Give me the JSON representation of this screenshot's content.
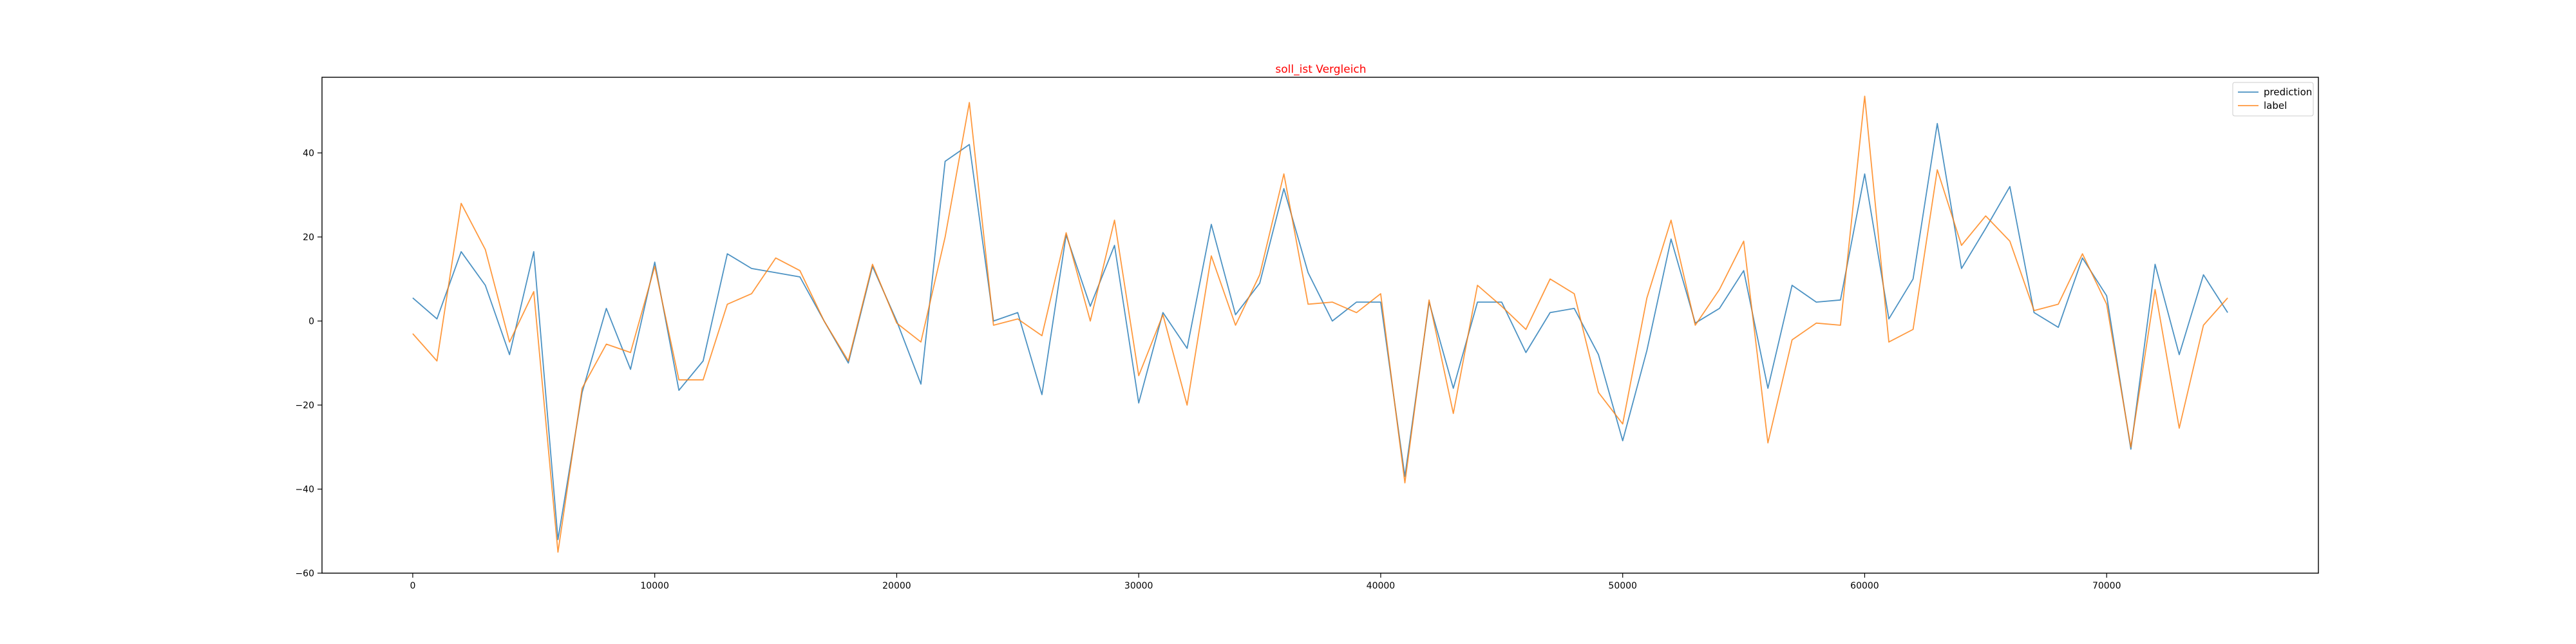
{
  "chart_data": {
    "type": "line",
    "title": "soll_ist Vergleich",
    "title_color": "#ff0000",
    "xlabel": "",
    "ylabel": "",
    "xlim": [
      -3750,
      78750
    ],
    "ylim": [
      -60,
      58
    ],
    "x_ticks": [
      0,
      10000,
      20000,
      30000,
      40000,
      50000,
      60000,
      70000
    ],
    "y_ticks": [
      -60,
      -40,
      -20,
      0,
      20,
      40
    ],
    "grid": false,
    "legend_position": "top-right",
    "x": [
      0,
      1000,
      2000,
      3000,
      4000,
      5000,
      6000,
      7000,
      8000,
      9000,
      10000,
      11000,
      12000,
      13000,
      14000,
      15000,
      16000,
      17000,
      18000,
      19000,
      20000,
      21000,
      22000,
      23000,
      24000,
      25000,
      26000,
      27000,
      28000,
      29000,
      30000,
      31000,
      32000,
      33000,
      34000,
      35000,
      36000,
      37000,
      38000,
      39000,
      40000,
      41000,
      42000,
      43000,
      44000,
      45000,
      46000,
      47000,
      48000,
      49000,
      50000,
      51000,
      52000,
      53000,
      54000,
      55000,
      56000,
      57000,
      58000,
      59000,
      60000,
      61000,
      62000,
      63000,
      64000,
      65000,
      66000,
      67000,
      68000,
      69000,
      70000,
      71000,
      72000,
      73000,
      74000,
      75000
    ],
    "series": [
      {
        "name": "prediction",
        "color": "#1f77b4",
        "values": [
          5.5,
          0.5,
          16.5,
          8.5,
          -8,
          16.5,
          -52,
          -17,
          3,
          -11.5,
          14,
          -16.5,
          -9.5,
          16,
          12.5,
          11.5,
          10.5,
          0,
          -10,
          13,
          0,
          -15,
          38,
          42,
          0,
          2,
          -17.5,
          20.5,
          3.5,
          18,
          -19.5,
          2,
          -6.5,
          23,
          1.5,
          9,
          31.5,
          11.5,
          0,
          4.5,
          4.5,
          -37,
          4.5,
          -16,
          4.5,
          4.5,
          -7.5,
          2,
          3,
          -8,
          -28.5,
          -7,
          19.5,
          -0.5,
          3,
          12,
          -16,
          8.5,
          4.5,
          5,
          35,
          0.5,
          10,
          47,
          12.5,
          22,
          32,
          2,
          -1.5,
          15,
          6,
          -30.5,
          13.5,
          -8,
          11,
          2
        ]
      },
      {
        "name": "label",
        "color": "#ff7f0e",
        "values": [
          -3,
          -9.5,
          28,
          17,
          -5,
          7,
          -55,
          -16,
          -5.5,
          -7.5,
          13,
          -14,
          -14,
          4,
          6.5,
          15,
          12,
          0,
          -9.5,
          13.5,
          -0.5,
          -5,
          20,
          52,
          -1,
          0.5,
          -3.5,
          21,
          0,
          24,
          -13,
          1.5,
          -20,
          15.5,
          -1,
          11,
          35,
          4,
          4.5,
          2,
          6.5,
          -38.5,
          5,
          -22,
          8.5,
          3.5,
          -2,
          10,
          6.5,
          -17,
          -24.5,
          5.5,
          24,
          -1,
          7.5,
          19,
          -29,
          -4.5,
          -0.5,
          -1,
          53.5,
          -5,
          -2,
          36,
          18,
          25,
          19,
          2.5,
          4,
          16,
          4,
          -30,
          7.5,
          -25.5,
          -1,
          5.5
        ]
      }
    ]
  }
}
